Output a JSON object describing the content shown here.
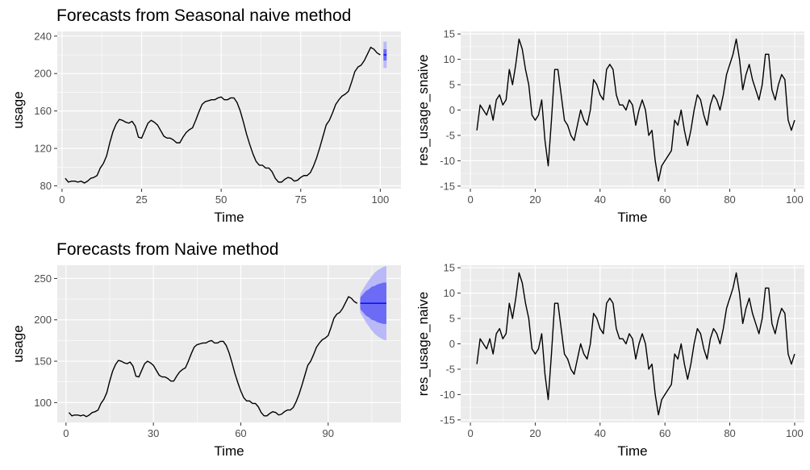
{
  "chart_data": [
    {
      "id": "p1",
      "type": "line",
      "title": "Forecasts from Seasonal naive method",
      "xlabel": "Time",
      "ylabel": "usage",
      "xlim": [
        -1.5,
        106.5
      ],
      "ylim": [
        77,
        245
      ],
      "xticks": [
        0,
        25,
        50,
        75,
        100
      ],
      "xtick_labels": [
        "0",
        "25",
        "50",
        "75",
        "100"
      ],
      "yticks": [
        80,
        120,
        160,
        200,
        240
      ],
      "ytick_labels": [
        "80",
        "120",
        "160",
        "200",
        "240"
      ],
      "series": [
        {
          "name": "usage",
          "x_start": 1,
          "values": [
            88,
            84,
            85,
            85,
            84,
            85,
            83,
            85,
            88,
            89,
            91,
            99,
            104,
            112,
            126,
            138,
            146,
            151,
            150,
            148,
            147,
            149,
            144,
            132,
            131,
            139,
            147,
            150,
            148,
            145,
            139,
            133,
            131,
            131,
            129,
            126,
            126,
            132,
            137,
            140,
            142,
            150,
            159,
            167,
            170,
            171,
            172,
            172,
            174,
            175,
            172,
            172,
            174,
            174,
            169,
            160,
            148,
            135,
            124,
            114,
            106,
            102,
            102,
            99,
            99,
            95,
            88,
            84,
            84,
            87,
            89,
            88,
            85,
            86,
            89,
            91,
            91,
            94,
            101,
            110,
            121,
            133,
            145,
            150,
            158,
            167,
            172,
            176,
            178,
            181,
            191,
            202,
            207,
            209,
            214,
            221,
            228,
            226,
            222,
            220
          ]
        }
      ],
      "forecast": {
        "x": [
          101,
          102
        ],
        "mean": [
          220,
          220
        ],
        "lo80": [
          214,
          214
        ],
        "hi80": [
          226,
          226
        ],
        "lo95": [
          206,
          206
        ],
        "hi95": [
          234,
          234
        ]
      }
    },
    {
      "id": "p2",
      "type": "line",
      "title": "",
      "xlabel": "Time",
      "ylabel": "res_usage_snaive",
      "xlim": [
        -3,
        103
      ],
      "ylim": [
        -15.5,
        15.5
      ],
      "xticks": [
        0,
        20,
        40,
        60,
        80,
        100
      ],
      "xtick_labels": [
        "0",
        "20",
        "40",
        "60",
        "80",
        "100"
      ],
      "yticks": [
        -15,
        -10,
        -5,
        0,
        5,
        10,
        15
      ],
      "ytick_labels": [
        "-15",
        "-10",
        "-5",
        "0",
        "5",
        "10",
        "15"
      ],
      "series": [
        {
          "name": "res_usage_snaive",
          "x_start": 2,
          "values": [
            -4,
            1,
            0,
            -1,
            1,
            -2,
            2,
            3,
            1,
            2,
            8,
            5,
            9,
            14,
            12,
            8,
            5,
            -1,
            -2,
            -1,
            2,
            -6,
            -11,
            -2,
            8,
            8,
            3,
            -2,
            -3,
            -5,
            -6,
            -3,
            0,
            -2,
            -3,
            0,
            6,
            5,
            3,
            2,
            8,
            9,
            8,
            3,
            1,
            1,
            0,
            2,
            1,
            -3,
            0,
            2,
            0,
            -5,
            -4,
            -10,
            -14,
            -11,
            -10,
            -9,
            -8,
            -2,
            -3,
            0,
            -4,
            -7,
            -4,
            0,
            3,
            2,
            -1,
            -3,
            1,
            3,
            2,
            0,
            3,
            7,
            9,
            11,
            14,
            10,
            4,
            7,
            9,
            6,
            4,
            2,
            5,
            11,
            11,
            4,
            2,
            5,
            7,
            6,
            -2,
            -4,
            -2
          ]
        }
      ]
    },
    {
      "id": "p3",
      "type": "line",
      "title": "Forecasts from Naive method",
      "xlabel": "Time",
      "ylabel": "usage",
      "xlim": [
        -3,
        115
      ],
      "ylim": [
        76,
        266
      ],
      "xticks": [
        0,
        30,
        60,
        90
      ],
      "xtick_labels": [
        "0",
        "30",
        "60",
        "90"
      ],
      "yticks": [
        100,
        150,
        200,
        250
      ],
      "ytick_labels": [
        "100",
        "150",
        "200",
        "250"
      ],
      "series": [
        {
          "name": "usage",
          "x_start": 1,
          "values": [
            88,
            84,
            85,
            85,
            84,
            85,
            83,
            85,
            88,
            89,
            91,
            99,
            104,
            112,
            126,
            138,
            146,
            151,
            150,
            148,
            147,
            149,
            144,
            132,
            131,
            139,
            147,
            150,
            148,
            145,
            139,
            133,
            131,
            131,
            129,
            126,
            126,
            132,
            137,
            140,
            142,
            150,
            159,
            167,
            170,
            171,
            172,
            172,
            174,
            175,
            172,
            172,
            174,
            174,
            169,
            160,
            148,
            135,
            124,
            114,
            106,
            102,
            102,
            99,
            99,
            95,
            88,
            84,
            84,
            87,
            89,
            88,
            85,
            86,
            89,
            91,
            91,
            94,
            101,
            110,
            121,
            133,
            145,
            150,
            158,
            167,
            172,
            176,
            178,
            181,
            191,
            202,
            207,
            209,
            214,
            221,
            228,
            226,
            222,
            220
          ]
        }
      ],
      "forecast": {
        "x": [
          101,
          102,
          103,
          104,
          105,
          106,
          107,
          108,
          109,
          110
        ],
        "mean": [
          220,
          220,
          220,
          220,
          220,
          220,
          220,
          220,
          220,
          220
        ],
        "lo80": [
          213,
          209,
          205,
          203,
          200,
          199,
          197,
          196,
          195,
          195
        ],
        "hi80": [
          227,
          231,
          235,
          237,
          240,
          241,
          243,
          244,
          245,
          245
        ],
        "lo95": [
          209,
          203,
          197,
          192,
          187,
          183,
          180,
          178,
          176,
          175
        ],
        "hi95": [
          231,
          237,
          243,
          248,
          253,
          257,
          260,
          262,
          264,
          265
        ]
      }
    },
    {
      "id": "p4",
      "type": "line",
      "title": "",
      "xlabel": "Time",
      "ylabel": "res_usage_naive",
      "xlim": [
        -3,
        103
      ],
      "ylim": [
        -15.5,
        15.5
      ],
      "xticks": [
        0,
        20,
        40,
        60,
        80,
        100
      ],
      "xtick_labels": [
        "0",
        "20",
        "40",
        "60",
        "80",
        "100"
      ],
      "yticks": [
        -15,
        -10,
        -5,
        0,
        5,
        10,
        15
      ],
      "ytick_labels": [
        "-15",
        "-10",
        "-5",
        "0",
        "5",
        "10",
        "15"
      ],
      "series": [
        {
          "name": "res_usage_naive",
          "x_start": 2,
          "values": [
            -4,
            1,
            0,
            -1,
            1,
            -2,
            2,
            3,
            1,
            2,
            8,
            5,
            9,
            14,
            12,
            8,
            5,
            -1,
            -2,
            -1,
            2,
            -6,
            -11,
            -2,
            8,
            8,
            3,
            -2,
            -3,
            -5,
            -6,
            -3,
            0,
            -2,
            -3,
            0,
            6,
            5,
            3,
            2,
            8,
            9,
            8,
            3,
            1,
            1,
            0,
            2,
            1,
            -3,
            0,
            2,
            0,
            -5,
            -4,
            -10,
            -14,
            -11,
            -10,
            -9,
            -8,
            -2,
            -3,
            0,
            -4,
            -7,
            -4,
            0,
            3,
            2,
            -1,
            -3,
            1,
            3,
            2,
            0,
            3,
            7,
            9,
            11,
            14,
            10,
            4,
            7,
            9,
            6,
            4,
            2,
            5,
            11,
            11,
            4,
            2,
            5,
            7,
            6,
            -2,
            -4,
            -2
          ]
        }
      ]
    }
  ],
  "colors": {
    "panel_bg": "#ebebeb",
    "grid": "#ffffff",
    "line": "#000000",
    "tick_text": "#4d4d4d",
    "forecast_mean": "#0000ff",
    "band80": "#6b6bf5",
    "band95": "#b9b9f8"
  }
}
